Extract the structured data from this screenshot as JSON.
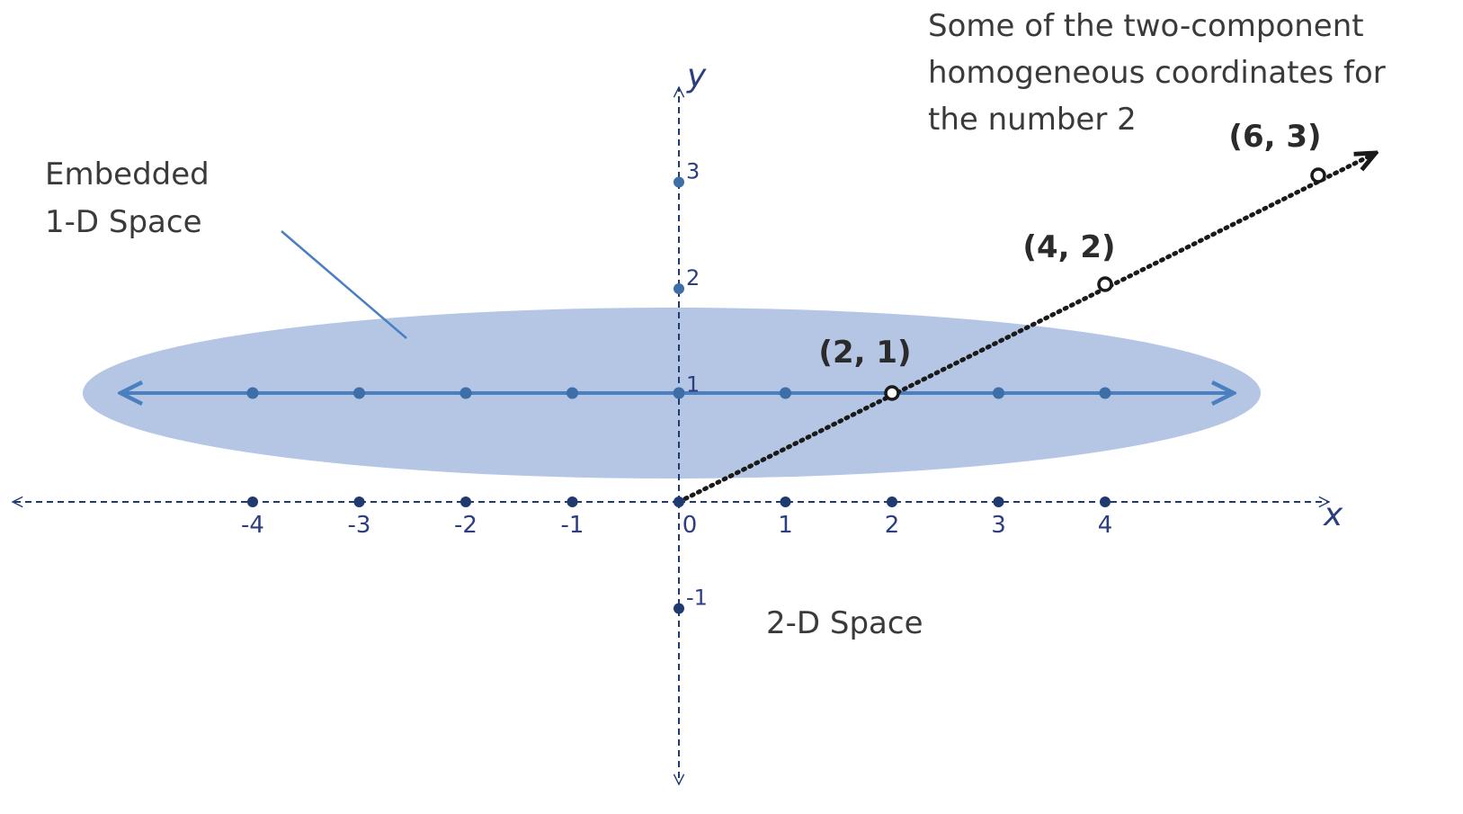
{
  "labels": {
    "embedded_line1": "Embedded",
    "embedded_line2": "1-D Space",
    "two_d_space": "2-D Space",
    "caption_line1": "Some of the two-component",
    "caption_line2": "homogeneous coordinates for",
    "caption_line3": "the number 2",
    "x_axis": "x",
    "y_axis": "y"
  },
  "x_ticks": [
    {
      "value": -4,
      "label": "-4"
    },
    {
      "value": -3,
      "label": "-3"
    },
    {
      "value": -2,
      "label": "-2"
    },
    {
      "value": -1,
      "label": "-1"
    },
    {
      "value": 0,
      "label": "0"
    },
    {
      "value": 1,
      "label": "1"
    },
    {
      "value": 2,
      "label": "2"
    },
    {
      "value": 3,
      "label": "3"
    },
    {
      "value": 4,
      "label": "4"
    }
  ],
  "y_ticks": [
    {
      "value": 3,
      "label": "3"
    },
    {
      "value": 2,
      "label": "2"
    },
    {
      "value": 1,
      "label": "1"
    },
    {
      "value": -1,
      "label": "-1"
    }
  ],
  "embedded_points": [
    -4,
    -3,
    -2,
    -1,
    0,
    1,
    2,
    3,
    4
  ],
  "homogeneous_points": [
    {
      "x": 2,
      "y": 1,
      "label": "(2, 1)"
    },
    {
      "x": 4,
      "y": 2,
      "label": "(4, 2)"
    },
    {
      "x": 6,
      "y": 3,
      "label": "(6, 3)"
    }
  ],
  "colors": {
    "axis": "#1f3a6e",
    "ellipse": "#b4c6e4",
    "embedded_line": "#4a7fc0",
    "embedded_point": "#3d6ea8",
    "ray": "#1a1a1a"
  }
}
